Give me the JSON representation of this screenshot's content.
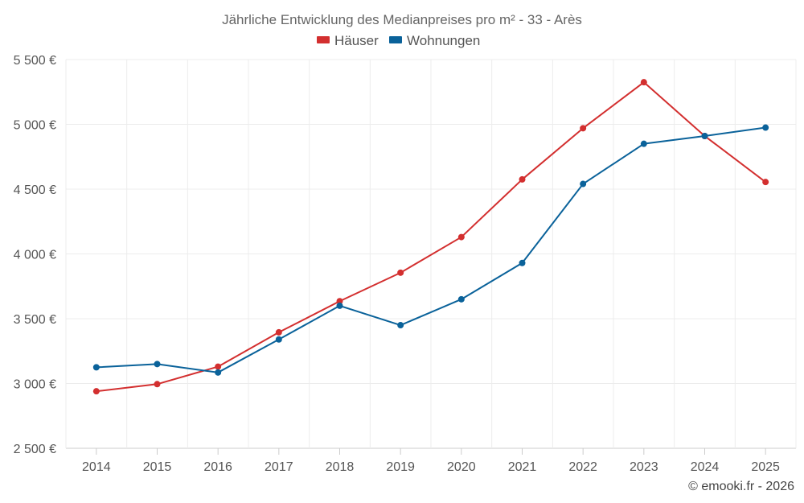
{
  "chart_data": {
    "type": "line",
    "title": "Jährliche Entwicklung des Medianpreises pro m² - 33 - Arès",
    "categories": [
      "2014",
      "2015",
      "2016",
      "2017",
      "2018",
      "2019",
      "2020",
      "2021",
      "2022",
      "2023",
      "2024",
      "2025"
    ],
    "series": [
      {
        "name": "Häuser",
        "color": "#d32f2f",
        "values": [
          2940,
          2995,
          3130,
          3395,
          3635,
          3855,
          4130,
          4575,
          4970,
          5325,
          4910,
          4555
        ]
      },
      {
        "name": "Wohnungen",
        "color": "#0a629a",
        "values": [
          3125,
          3150,
          3085,
          3340,
          3600,
          3450,
          3650,
          3930,
          4540,
          4850,
          4910,
          4975
        ]
      }
    ],
    "ylim": [
      2500,
      5500
    ],
    "yticks": [
      2500,
      3000,
      3500,
      4000,
      4500,
      5000,
      5500
    ],
    "ytick_labels": [
      "2 500 €",
      "3 000 €",
      "3 500 €",
      "4 000 €",
      "4 500 €",
      "5 000 €",
      "5 500 €"
    ],
    "xlabel": "",
    "ylabel": "",
    "grid": true,
    "legend_position": "top-center"
  },
  "credit": "© emooki.fr - 2026"
}
